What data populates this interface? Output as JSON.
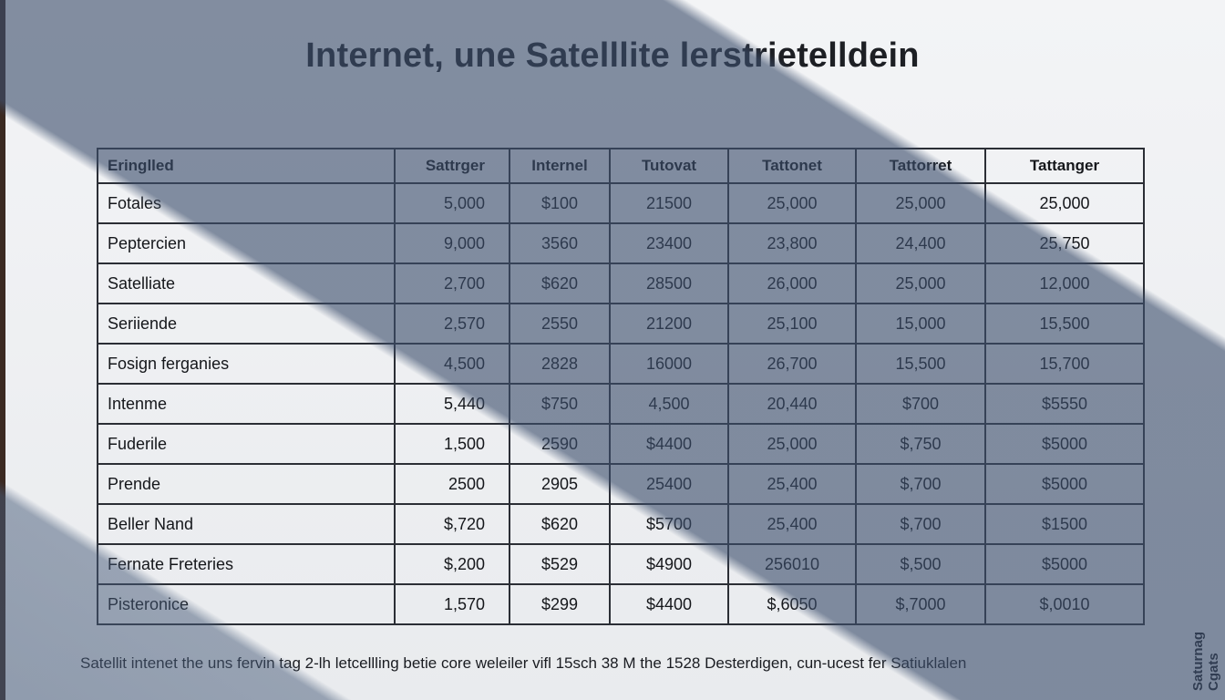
{
  "title": "Internet, une Satelllite lerstrietelldein",
  "table": {
    "headers": [
      "Eringlled",
      "Sattrger",
      "Internel",
      "Tutovat",
      "Tattonet",
      "Tattorret",
      "Tattanger"
    ],
    "rows": [
      [
        "Fotales",
        "5,000",
        "$100",
        "21500",
        "25,000",
        "25,000",
        "25,000"
      ],
      [
        "Peptercien",
        "9,000",
        "3560",
        "23400",
        "23,800",
        "24,400",
        "25,750"
      ],
      [
        "Satelliate",
        "2,700",
        "$620",
        "28500",
        "26,000",
        "25,000",
        "12,000"
      ],
      [
        "Seriiende",
        "2,570",
        "2550",
        "21200",
        "25,100",
        "15,000",
        "15,500"
      ],
      [
        "Fosign ferganies",
        "4,500",
        "2828",
        "16000",
        "26,700",
        "15,500",
        "15,700"
      ],
      [
        "Intenme",
        "5,440",
        "$750",
        "4,500",
        "20,440",
        "$700",
        "$5550"
      ],
      [
        "Fuderile",
        "1,500",
        "2590",
        "$4400",
        "25,000",
        "$,750",
        "$5000"
      ],
      [
        "Prende",
        "2500",
        "2905",
        "25400",
        "25,400",
        "$,700",
        "$5000"
      ],
      [
        "Beller Nand",
        "$,720",
        "$620",
        "$5700",
        "25,400",
        "$,700",
        "$1500"
      ],
      [
        "Fernate Freteries",
        "$,200",
        "$529",
        "$4900",
        "256010",
        "$,500",
        "$5000"
      ],
      [
        "Pisteronice",
        "1,570",
        "$299",
        "$4400",
        "$,6050",
        "$,7000",
        "$,0010"
      ]
    ]
  },
  "caption": "Satellit intenet the uns fervin tag 2-lh letcellling betie core weleiler vifl 15sch 38 M the 1528 Desterdigen, cun-ucest fer Satiuklalen",
  "side_text": "Saturnag Cgats"
}
